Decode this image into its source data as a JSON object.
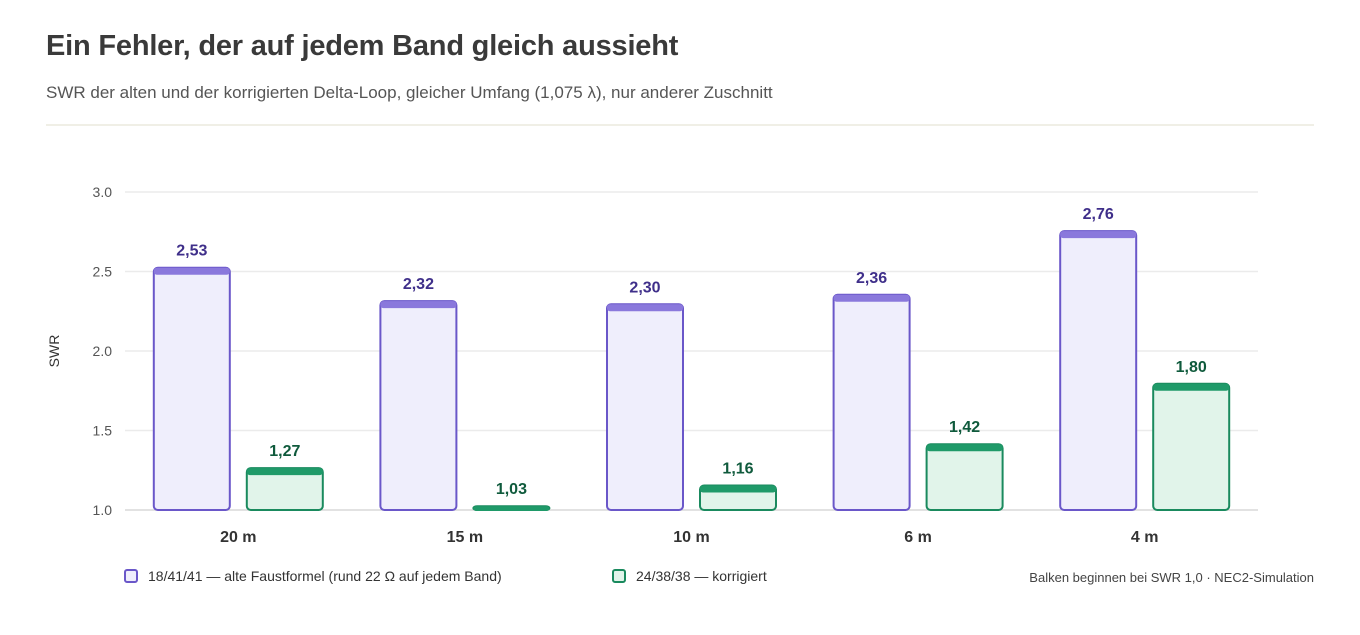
{
  "header": {
    "title": "Ein Fehler, der auf jedem Band gleich aussieht",
    "subtitle": "SWR der alten und der korrigierten Delta-Loop, gleicher Umfang (1,075 λ), nur anderer Zuschnitt"
  },
  "chart_data": {
    "type": "bar",
    "ylabel": "SWR",
    "xlabel": "",
    "ylim": [
      1.0,
      3.0
    ],
    "yticks": [
      "1.0",
      "1.5",
      "2.0",
      "2.5",
      "3.0"
    ],
    "ytick_values": [
      1.0,
      1.5,
      2.0,
      2.5,
      3.0
    ],
    "baseline": 1.0,
    "grid": true,
    "categories": [
      "20 m",
      "15 m",
      "10 m",
      "6 m",
      "4 m"
    ],
    "series": [
      {
        "name": "18/41/41 — alte Faustformel (rund 22 Ω auf jedem Band)",
        "values": [
          2.53,
          2.32,
          2.3,
          2.36,
          2.76
        ],
        "labels": [
          "2,53",
          "2,32",
          "2,30",
          "2,36",
          "2,76"
        ],
        "fill": "#efeefc",
        "stroke": "#6a57c9",
        "cap": "#8a78dc",
        "label_color": "#3f2f8a"
      },
      {
        "name": "24/38/38 — korrigiert",
        "values": [
          1.27,
          1.03,
          1.16,
          1.42,
          1.8
        ],
        "labels": [
          "1,27",
          "1,03",
          "1,16",
          "1,42",
          "1,80"
        ],
        "fill": "#e1f4ea",
        "stroke": "#1a8a5e",
        "cap": "#1f9a69",
        "label_color": "#0f5a3c"
      }
    ],
    "legend_position": "bottom-left",
    "footnote": "Balken beginnen bei SWR 1,0 · NEC2-Simulation"
  }
}
